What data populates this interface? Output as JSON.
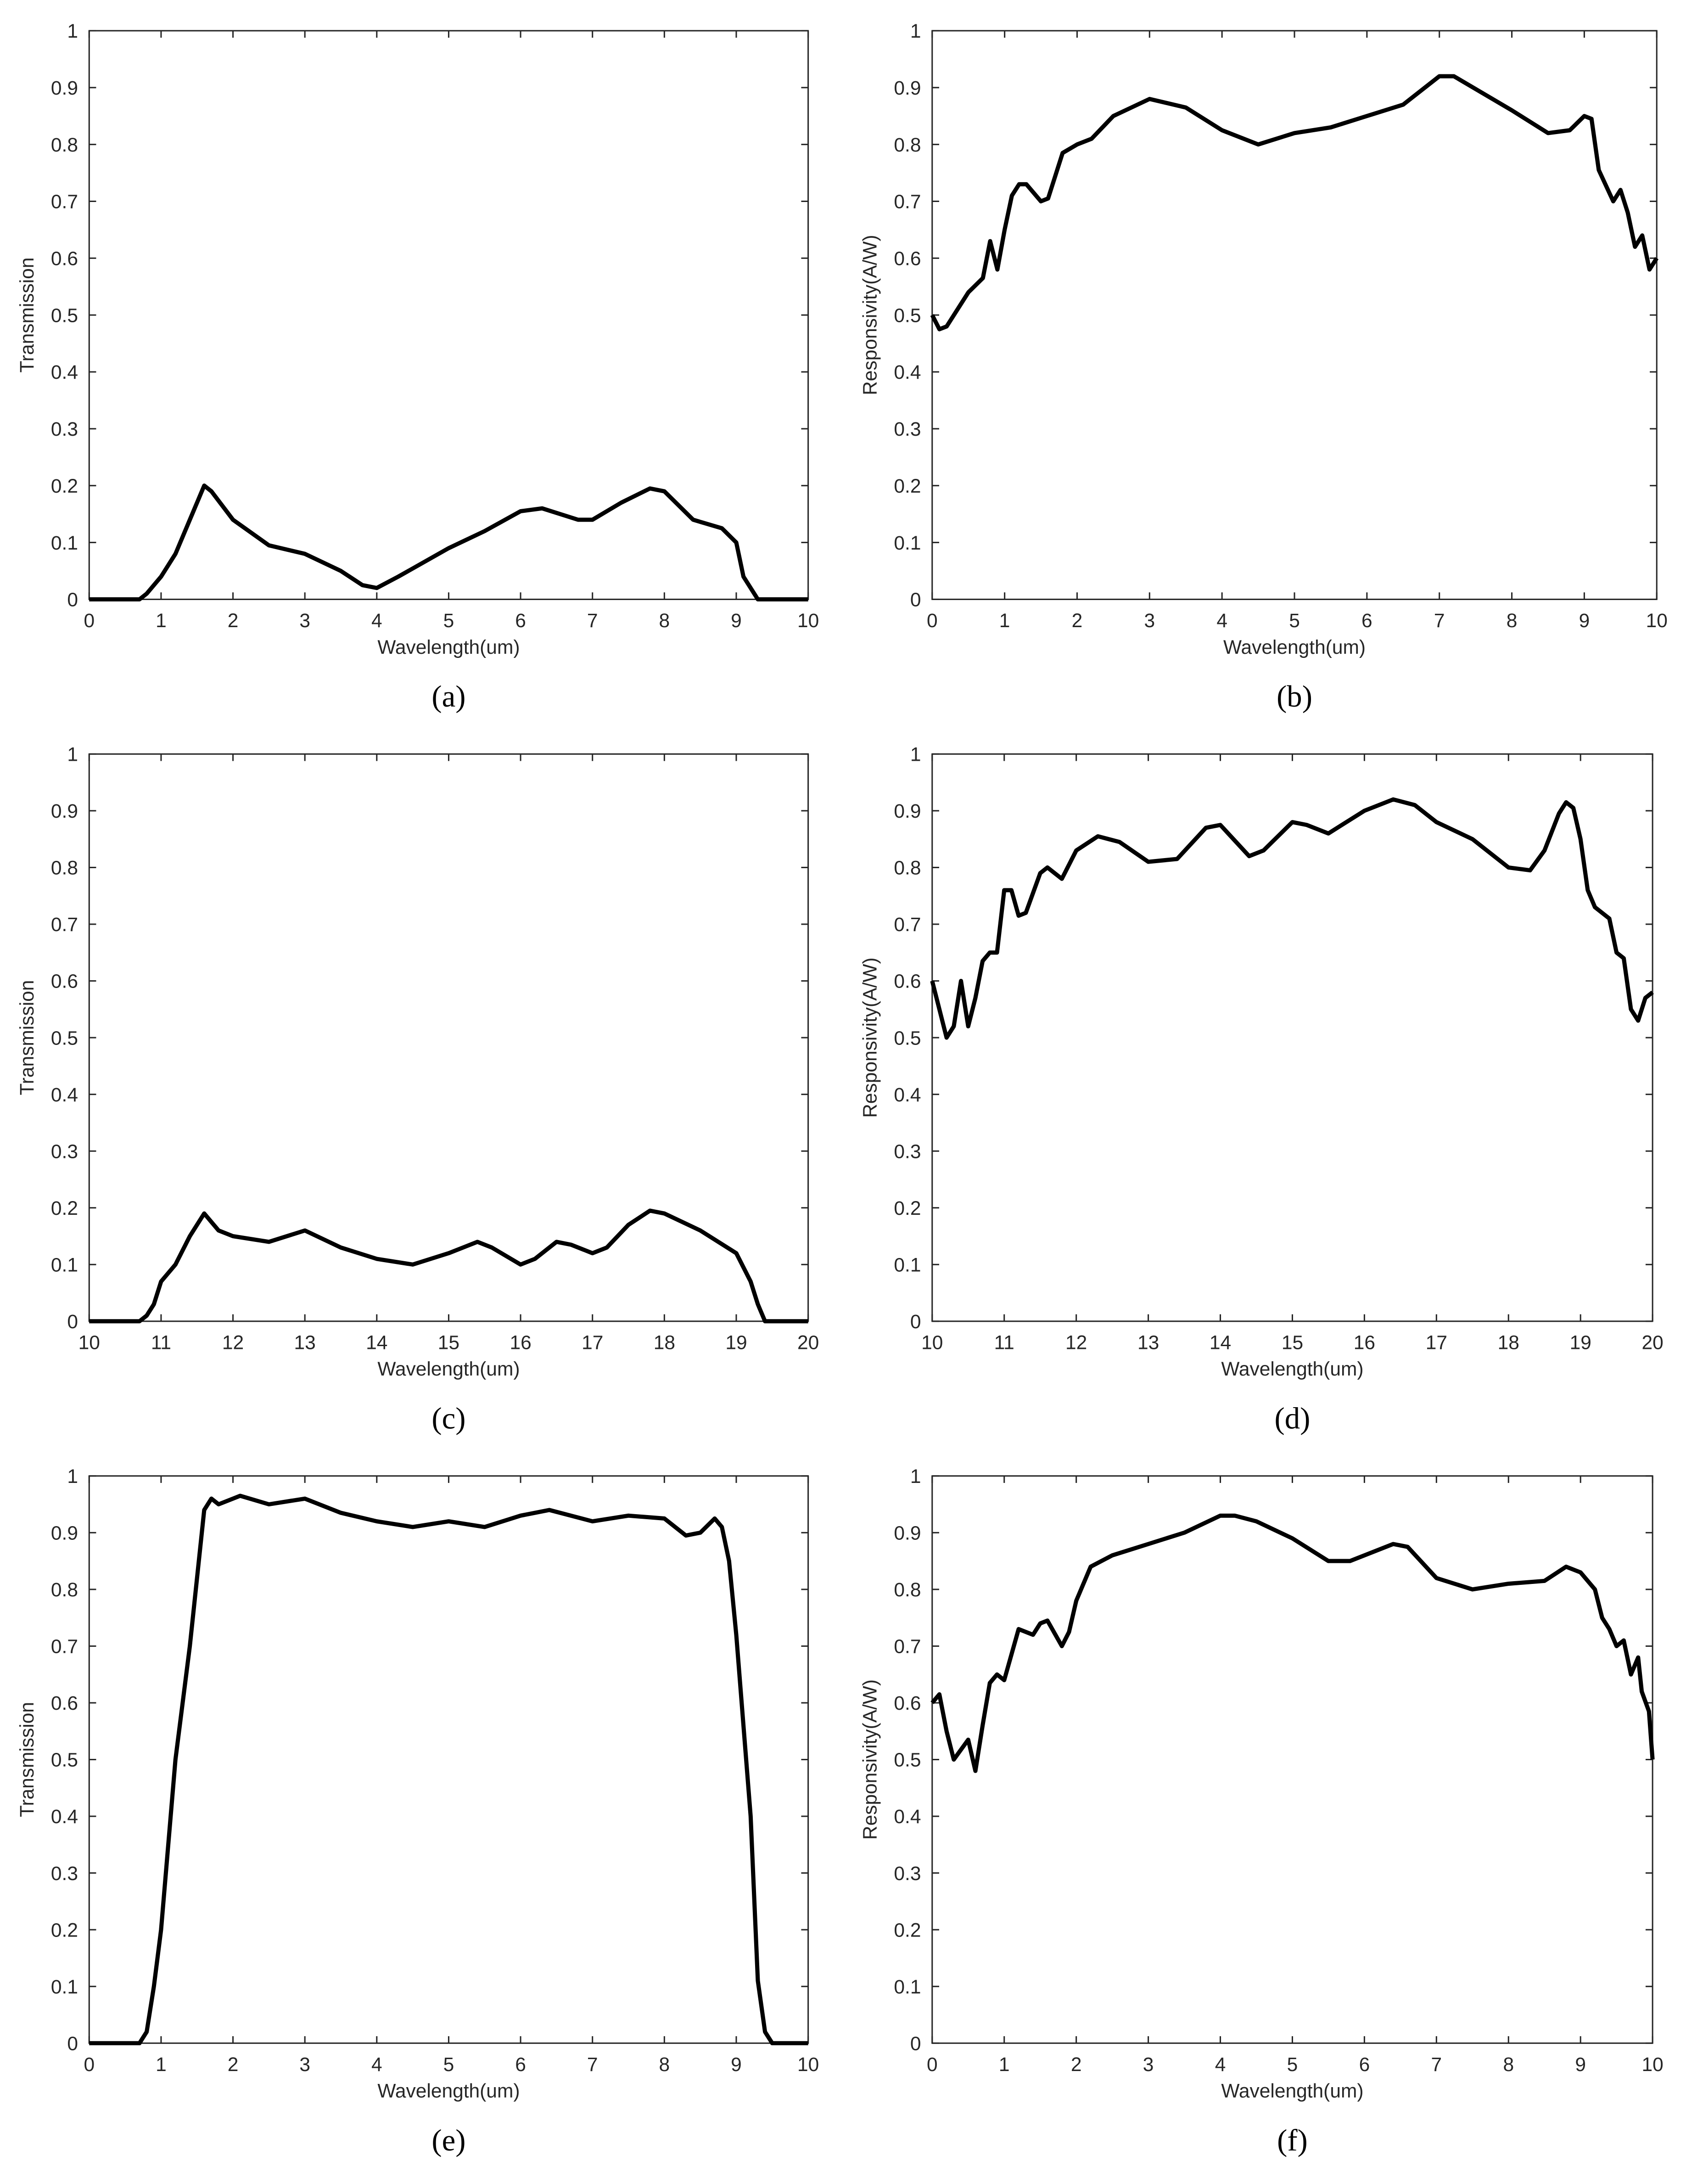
{
  "chart_data": [
    {
      "type": "line",
      "caption": "(a)",
      "x_label": "Wavelength(um)",
      "y_label": "Transmission",
      "color": "#000000",
      "xlim": [
        0,
        10
      ],
      "ylim": [
        0,
        1
      ],
      "xticks": [
        0,
        1,
        2,
        3,
        4,
        5,
        6,
        7,
        8,
        9,
        10
      ],
      "yticks": [
        0,
        0.1,
        0.2,
        0.3,
        0.4,
        0.5,
        0.6,
        0.7,
        0.8,
        0.9,
        1
      ],
      "x": [
        0,
        0.7,
        0.8,
        1,
        1.2,
        1.4,
        1.6,
        1.7,
        2,
        2.5,
        3,
        3.5,
        3.8,
        4,
        4.3,
        5,
        5.5,
        6,
        6.3,
        6.8,
        7,
        7.4,
        7.8,
        8,
        8.4,
        8.8,
        9,
        9.1,
        9.3,
        10
      ],
      "values": [
        0,
        0,
        0.01,
        0.04,
        0.08,
        0.14,
        0.2,
        0.19,
        0.14,
        0.095,
        0.08,
        0.05,
        0.025,
        0.02,
        0.04,
        0.09,
        0.12,
        0.155,
        0.16,
        0.14,
        0.14,
        0.17,
        0.195,
        0.19,
        0.14,
        0.125,
        0.1,
        0.04,
        0,
        0
      ]
    },
    {
      "type": "line",
      "caption": "(b)",
      "x_label": "Wavelength(um)",
      "y_label": "Responsivity(A/W)",
      "color": "#000000",
      "xlim": [
        0,
        10
      ],
      "ylim": [
        0,
        1
      ],
      "xticks": [
        0,
        1,
        2,
        3,
        4,
        5,
        6,
        7,
        8,
        9,
        10
      ],
      "yticks": [
        0,
        0.1,
        0.2,
        0.3,
        0.4,
        0.5,
        0.6,
        0.7,
        0.8,
        0.9,
        1
      ],
      "x": [
        0,
        0.1,
        0.2,
        0.5,
        0.7,
        0.8,
        0.9,
        1,
        1.1,
        1.2,
        1.3,
        1.5,
        1.6,
        1.8,
        2,
        2.2,
        2.5,
        3,
        3.5,
        4,
        4.5,
        5,
        5.5,
        6,
        6.5,
        7,
        7.2,
        8,
        8.5,
        8.8,
        9,
        9.1,
        9.2,
        9.4,
        9.5,
        9.6,
        9.7,
        9.8,
        9.9,
        10
      ],
      "values": [
        0.5,
        0.475,
        0.48,
        0.54,
        0.565,
        0.63,
        0.58,
        0.65,
        0.71,
        0.73,
        0.73,
        0.7,
        0.705,
        0.785,
        0.8,
        0.81,
        0.85,
        0.88,
        0.865,
        0.825,
        0.8,
        0.82,
        0.83,
        0.85,
        0.87,
        0.92,
        0.92,
        0.86,
        0.82,
        0.825,
        0.85,
        0.845,
        0.755,
        0.7,
        0.72,
        0.68,
        0.62,
        0.64,
        0.58,
        0.6
      ]
    },
    {
      "type": "line",
      "caption": "(c)",
      "x_label": "Wavelength(um)",
      "y_label": "Transmission",
      "color": "#000000",
      "xlim": [
        10,
        20
      ],
      "ylim": [
        0,
        1
      ],
      "xticks": [
        10,
        11,
        12,
        13,
        14,
        15,
        16,
        17,
        18,
        19,
        20
      ],
      "yticks": [
        0,
        0.1,
        0.2,
        0.3,
        0.4,
        0.5,
        0.6,
        0.7,
        0.8,
        0.9,
        1
      ],
      "x": [
        10,
        10.7,
        10.8,
        10.9,
        11,
        11.2,
        11.4,
        11.6,
        11.8,
        12,
        12.5,
        13,
        13.5,
        14,
        14.5,
        15,
        15.4,
        15.6,
        16,
        16.2,
        16.5,
        16.7,
        17,
        17.2,
        17.5,
        17.8,
        18,
        18.5,
        19,
        19.2,
        19.3,
        19.4,
        20
      ],
      "values": [
        0,
        0,
        0.01,
        0.03,
        0.07,
        0.1,
        0.15,
        0.19,
        0.16,
        0.15,
        0.14,
        0.16,
        0.13,
        0.11,
        0.1,
        0.12,
        0.14,
        0.13,
        0.1,
        0.11,
        0.14,
        0.135,
        0.12,
        0.13,
        0.17,
        0.195,
        0.19,
        0.16,
        0.12,
        0.07,
        0.03,
        0,
        0
      ]
    },
    {
      "type": "line",
      "caption": "(d)",
      "x_label": "Wavelength(um)",
      "y_label": "Responsivity(A/W)",
      "color": "#000000",
      "xlim": [
        10,
        20
      ],
      "ylim": [
        0,
        1
      ],
      "xticks": [
        10,
        11,
        12,
        13,
        14,
        15,
        16,
        17,
        18,
        19,
        20
      ],
      "yticks": [
        0,
        0.1,
        0.2,
        0.3,
        0.4,
        0.5,
        0.6,
        0.7,
        0.8,
        0.9,
        1
      ],
      "x": [
        10,
        10.2,
        10.3,
        10.4,
        10.5,
        10.6,
        10.7,
        10.8,
        10.9,
        11,
        11.1,
        11.2,
        11.3,
        11.5,
        11.6,
        11.8,
        12,
        12.3,
        12.6,
        13,
        13.4,
        13.8,
        14,
        14.4,
        14.6,
        15,
        15.2,
        15.5,
        16,
        16.4,
        16.7,
        17,
        17.5,
        18,
        18.3,
        18.5,
        18.7,
        18.8,
        18.9,
        19,
        19.1,
        19.2,
        19.4,
        19.5,
        19.6,
        19.7,
        19.8,
        19.9,
        20
      ],
      "values": [
        0.6,
        0.5,
        0.52,
        0.6,
        0.52,
        0.57,
        0.635,
        0.65,
        0.65,
        0.76,
        0.76,
        0.715,
        0.72,
        0.79,
        0.8,
        0.78,
        0.83,
        0.855,
        0.845,
        0.81,
        0.815,
        0.87,
        0.875,
        0.82,
        0.83,
        0.88,
        0.875,
        0.86,
        0.9,
        0.92,
        0.91,
        0.88,
        0.85,
        0.8,
        0.795,
        0.83,
        0.895,
        0.915,
        0.905,
        0.85,
        0.76,
        0.73,
        0.71,
        0.65,
        0.64,
        0.55,
        0.53,
        0.57,
        0.58
      ]
    },
    {
      "type": "line",
      "caption": "(e)",
      "x_label": "Wavelength(um)",
      "y_label": "Transmission",
      "color": "#000000",
      "xlim": [
        0,
        10
      ],
      "ylim": [
        0,
        1
      ],
      "xticks": [
        0,
        1,
        2,
        3,
        4,
        5,
        6,
        7,
        8,
        9,
        10
      ],
      "yticks": [
        0,
        0.1,
        0.2,
        0.3,
        0.4,
        0.5,
        0.6,
        0.7,
        0.8,
        0.9,
        1
      ],
      "x": [
        0,
        0.7,
        0.8,
        0.9,
        1,
        1.2,
        1.4,
        1.6,
        1.7,
        1.8,
        2.1,
        2.5,
        3,
        3.5,
        4,
        4.5,
        5,
        5.5,
        6,
        6.4,
        7,
        7.5,
        8,
        8.3,
        8.5,
        8.7,
        8.8,
        8.9,
        9,
        9.2,
        9.3,
        9.4,
        9.5,
        10
      ],
      "values": [
        0,
        0,
        0.02,
        0.1,
        0.2,
        0.5,
        0.7,
        0.94,
        0.96,
        0.95,
        0.965,
        0.95,
        0.96,
        0.935,
        0.92,
        0.91,
        0.92,
        0.91,
        0.93,
        0.94,
        0.92,
        0.93,
        0.925,
        0.895,
        0.9,
        0.925,
        0.91,
        0.85,
        0.72,
        0.4,
        0.11,
        0.02,
        0,
        0
      ]
    },
    {
      "type": "line",
      "caption": "(f)",
      "x_label": "Wavelength(um)",
      "y_label": "Responsivity(A/W)",
      "color": "#000000",
      "xlim": [
        0,
        10
      ],
      "ylim": [
        0,
        1
      ],
      "xticks": [
        0,
        1,
        2,
        3,
        4,
        5,
        6,
        7,
        8,
        9,
        10
      ],
      "yticks": [
        0,
        0.1,
        0.2,
        0.3,
        0.4,
        0.5,
        0.6,
        0.7,
        0.8,
        0.9,
        1
      ],
      "x": [
        0,
        0.1,
        0.2,
        0.3,
        0.5,
        0.6,
        0.7,
        0.8,
        0.9,
        1,
        1.2,
        1.4,
        1.5,
        1.6,
        1.8,
        1.9,
        2,
        2.2,
        2.5,
        3,
        3.5,
        4,
        4.2,
        4.5,
        5,
        5.5,
        5.8,
        6,
        6.4,
        6.6,
        7,
        7.5,
        8,
        8.5,
        8.8,
        9,
        9.2,
        9.3,
        9.4,
        9.5,
        9.6,
        9.7,
        9.8,
        9.85,
        9.95,
        10
      ],
      "values": [
        0.6,
        0.615,
        0.55,
        0.5,
        0.535,
        0.48,
        0.56,
        0.635,
        0.65,
        0.64,
        0.73,
        0.72,
        0.74,
        0.745,
        0.7,
        0.725,
        0.78,
        0.84,
        0.86,
        0.88,
        0.9,
        0.93,
        0.93,
        0.92,
        0.89,
        0.85,
        0.85,
        0.86,
        0.88,
        0.875,
        0.82,
        0.8,
        0.81,
        0.815,
        0.84,
        0.83,
        0.8,
        0.75,
        0.73,
        0.7,
        0.71,
        0.65,
        0.68,
        0.62,
        0.585,
        0.5
      ]
    }
  ]
}
